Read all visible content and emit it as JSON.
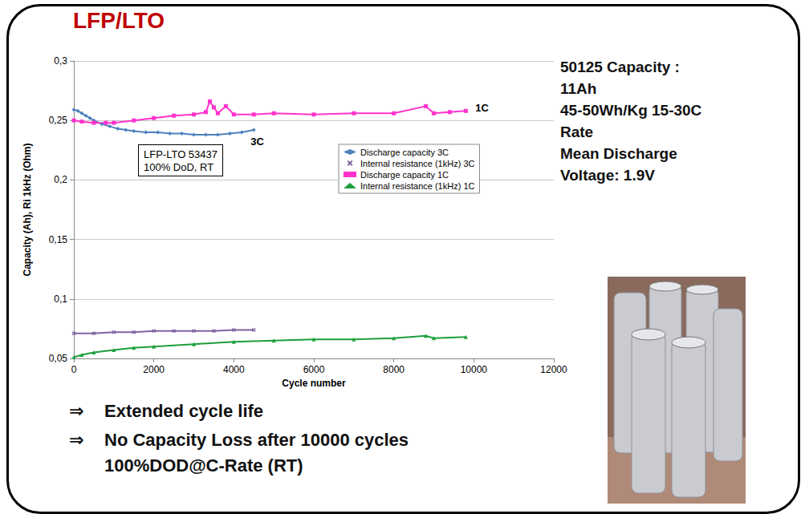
{
  "chart_data": {
    "type": "line",
    "title": "LFP/LTO",
    "x_label": "Cycle number",
    "y_label": "Capacity (Ah), Ri 1kHz (Ohm)",
    "xlim": [
      0,
      12000
    ],
    "xticks": [
      0,
      2000,
      4000,
      6000,
      8000,
      10000,
      12000
    ],
    "ylim": [
      0.05,
      0.3
    ],
    "yticks": [
      {
        "value": 0.05,
        "label": "0,05"
      },
      {
        "value": 0.1,
        "label": "0,1"
      },
      {
        "value": 0.15,
        "label": "0,15"
      },
      {
        "value": 0.2,
        "label": "0,2"
      },
      {
        "value": 0.25,
        "label": "0,25"
      },
      {
        "value": 0.3,
        "label": "0,3"
      }
    ],
    "grid": true,
    "legend": "upper right",
    "annotations": [
      {
        "text": "LFP-LTO 53437\n100% DoD, RT"
      },
      {
        "text": "3C",
        "series": "Discharge capacity 3C"
      },
      {
        "text": "1C",
        "series": "Discharge capacity 1C"
      }
    ],
    "series": [
      {
        "name": "Discharge capacity 3C",
        "color": "#4f81bd",
        "marker": "diamond",
        "x": [
          0,
          100,
          200,
          300,
          400,
          500,
          700,
          900,
          1100,
          1300,
          1500,
          1800,
          2100,
          2400,
          2700,
          3000,
          3300,
          3600,
          3900,
          4200,
          4500
        ],
        "values": [
          0.259,
          0.258,
          0.256,
          0.254,
          0.252,
          0.25,
          0.247,
          0.245,
          0.243,
          0.242,
          0.241,
          0.24,
          0.24,
          0.239,
          0.239,
          0.238,
          0.238,
          0.238,
          0.239,
          0.24,
          0.242
        ]
      },
      {
        "name": "Internal resistance (1kHz) 3C",
        "color": "#8064a2",
        "marker": "x",
        "x": [
          0,
          500,
          1000,
          1500,
          2000,
          2500,
          3000,
          3500,
          4000,
          4500
        ],
        "values": [
          0.071,
          0.071,
          0.072,
          0.072,
          0.073,
          0.073,
          0.073,
          0.073,
          0.074,
          0.074
        ]
      },
      {
        "name": "Discharge capacity 1C",
        "color": "#ff33cc",
        "marker": "square",
        "x": [
          0,
          200,
          500,
          800,
          1000,
          1500,
          2000,
          2500,
          3000,
          3300,
          3400,
          3500,
          3600,
          3800,
          4000,
          4500,
          5000,
          6000,
          7000,
          8000,
          8800,
          9000,
          9400,
          9800
        ],
        "values": [
          0.25,
          0.249,
          0.248,
          0.248,
          0.248,
          0.25,
          0.252,
          0.254,
          0.255,
          0.257,
          0.266,
          0.261,
          0.256,
          0.262,
          0.255,
          0.255,
          0.256,
          0.255,
          0.256,
          0.256,
          0.262,
          0.256,
          0.257,
          0.258
        ]
      },
      {
        "name": "Internal resistance (1kHz) 1C",
        "color": "#1e9e3e",
        "marker": "triangle",
        "x": [
          0,
          200,
          500,
          1000,
          1500,
          2000,
          3000,
          4000,
          5000,
          6000,
          7000,
          8000,
          8800,
          9000,
          9800
        ],
        "values": [
          0.051,
          0.053,
          0.055,
          0.057,
          0.059,
          0.06,
          0.062,
          0.064,
          0.065,
          0.066,
          0.066,
          0.067,
          0.069,
          0.067,
          0.068
        ]
      }
    ]
  },
  "side_text": [
    "50125 Capacity :",
    "11Ah",
    "45-50Wh/Kg 15-30C",
    "Rate",
    "Mean Discharge",
    "Voltage: 1.9V"
  ],
  "bullet_symbol": "⇒",
  "bullets": [
    "Extended cycle life",
    "No Capacity Loss after 10000 cycles\n100%DOD@C-Rate (RT)"
  ]
}
